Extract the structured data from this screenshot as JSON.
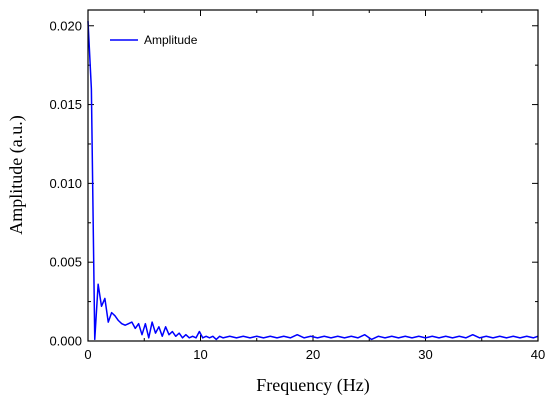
{
  "chart_data": {
    "type": "line",
    "xlabel": "Frequency (Hz)",
    "ylabel": "Amplitude (a.u.)",
    "xlim": [
      0,
      40
    ],
    "ylim": [
      0,
      0.021
    ],
    "xticks": [
      0,
      10,
      20,
      30,
      40
    ],
    "xtick_labels": [
      "0",
      "10",
      "20",
      "30",
      "40"
    ],
    "yticks": [
      0,
      0.005,
      0.01,
      0.015,
      0.02
    ],
    "ytick_labels": [
      "0.000",
      "0.005",
      "0.010",
      "0.015",
      "0.020"
    ],
    "grid": false,
    "legend": "top-left",
    "series": [
      {
        "name": "Amplitude",
        "color": "#0000ff",
        "x": [
          0,
          0.3,
          0.6,
          0.9,
          1.2,
          1.5,
          1.8,
          2.1,
          2.4,
          2.7,
          3.0,
          3.3,
          3.6,
          3.9,
          4.2,
          4.5,
          4.8,
          5.1,
          5.4,
          5.7,
          6.0,
          6.3,
          6.6,
          6.9,
          7.2,
          7.5,
          7.8,
          8.1,
          8.4,
          8.7,
          9.0,
          9.3,
          9.6,
          9.9,
          10.2,
          10.5,
          10.8,
          11.1,
          11.4,
          11.7,
          12.0,
          12.6,
          13.2,
          13.8,
          14.4,
          15.0,
          15.6,
          16.2,
          16.8,
          17.4,
          18.0,
          18.6,
          19.2,
          19.8,
          20.4,
          21.0,
          21.6,
          22.2,
          22.8,
          23.4,
          24.0,
          24.6,
          25.2,
          25.8,
          26.4,
          27.0,
          27.6,
          28.2,
          28.8,
          29.4,
          30.0,
          30.6,
          31.2,
          31.8,
          32.4,
          33.0,
          33.6,
          34.2,
          34.8,
          35.4,
          36.0,
          36.6,
          37.2,
          37.8,
          38.4,
          39.0,
          39.6,
          40.0
        ],
        "y": [
          0.0203,
          0.016,
          0.0001,
          0.0036,
          0.0022,
          0.0027,
          0.0012,
          0.0018,
          0.0016,
          0.0013,
          0.0011,
          0.001,
          0.0011,
          0.0012,
          0.0008,
          0.0011,
          0.0004,
          0.0011,
          0.0002,
          0.0012,
          0.0005,
          0.0009,
          0.0003,
          0.0009,
          0.0004,
          0.0006,
          0.0003,
          0.0005,
          0.0002,
          0.0004,
          0.0002,
          0.0003,
          0.0002,
          0.0006,
          0.0002,
          0.0003,
          0.0002,
          0.0003,
          0.0001,
          0.0003,
          0.0002,
          0.0003,
          0.0002,
          0.0003,
          0.0002,
          0.0003,
          0.0002,
          0.0003,
          0.0002,
          0.0003,
          0.0002,
          0.0004,
          0.0002,
          0.0003,
          0.0002,
          0.0003,
          0.0002,
          0.0003,
          0.0002,
          0.0003,
          0.0002,
          0.0004,
          0.0001,
          0.0003,
          0.0002,
          0.0003,
          0.0002,
          0.0003,
          0.0002,
          0.0003,
          0.0002,
          0.0003,
          0.0002,
          0.0003,
          0.0002,
          0.0003,
          0.0002,
          0.0004,
          0.0002,
          0.0003,
          0.0002,
          0.0003,
          0.0002,
          0.0003,
          0.0002,
          0.0003,
          0.0002,
          0.0003
        ]
      }
    ]
  }
}
